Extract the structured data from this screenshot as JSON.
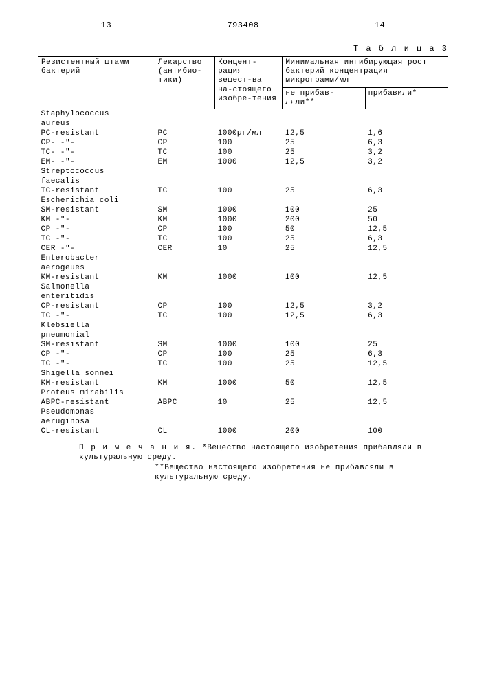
{
  "page": {
    "left_num": "13",
    "doc_num": "793408",
    "right_num": "14"
  },
  "caption": "Т а б л и ц а   3",
  "headers": {
    "col1": "Резистентный штамм бактерий",
    "col2": "Лекарство (антибио-тики)",
    "col3": "Концент-рация вещест-ва на-стоящего изобре-тения",
    "col45_top": "Минимальная ингибирующая рост бактерий концентрация микрограмм/мл",
    "col4": "не прибав-ляли**",
    "col5": "прибавили*"
  },
  "groups": [
    {
      "label_lines": [
        "Staphylococcus",
        "aureus"
      ],
      "rows": [
        {
          "c1": "PC-resistant",
          "c2": "PC",
          "c3": "1000µг/мл",
          "c4": "12,5",
          "c5": "1,6"
        },
        {
          "c1": "CP-  -\"-",
          "c2": "CP",
          "c3": "100",
          "c4": "25",
          "c5": "6,3"
        },
        {
          "c1": "TC-  -\"-",
          "c2": "TC",
          "c3": "100",
          "c4": "25",
          "c5": "3,2"
        },
        {
          "c1": "EM-  -\"-",
          "c2": "EM",
          "c3": "1000",
          "c4": "12,5",
          "c5": "3,2"
        }
      ]
    },
    {
      "label_lines": [
        "Streptococcus",
        "faecalis"
      ],
      "rows": [
        {
          "c1": "TC-resistant",
          "c2": "TC",
          "c3": "100",
          "c4": "25",
          "c5": "6,3"
        }
      ]
    },
    {
      "label_lines": [
        "Escherichia coli"
      ],
      "rows": [
        {
          "c1": "SM-resistant",
          "c2": "SM",
          "c3": "1000",
          "c4": "100",
          "c5": "25"
        },
        {
          "c1": "KM   -\"-",
          "c2": "KM",
          "c3": "1000",
          "c4": "200",
          "c5": "50"
        },
        {
          "c1": "CP   -\"-",
          "c2": "CP",
          "c3": "100",
          "c4": "50",
          "c5": "12,5"
        },
        {
          "c1": "TC   -\"-",
          "c2": "TC",
          "c3": "100",
          "c4": "25",
          "c5": "6,3"
        },
        {
          "c1": "CER  -\"-",
          "c2": "CER",
          "c3": "10",
          "c4": "25",
          "c5": "12,5"
        }
      ]
    },
    {
      "label_lines": [
        "Enterobacter",
        "aerogeues"
      ],
      "rows": [
        {
          "c1": "KM-resistant",
          "c2": "KM",
          "c3": "1000",
          "c4": "100",
          "c5": "12,5"
        }
      ]
    },
    {
      "label_lines": [
        "Salmonella",
        "enteritidis"
      ],
      "rows": [
        {
          "c1": "CP-resistant",
          "c2": "CP",
          "c3": "100",
          "c4": "12,5",
          "c5": "3,2"
        },
        {
          "c1": "TC   -\"-",
          "c2": "TC",
          "c3": "100",
          "c4": "12,5",
          "c5": "6,3"
        }
      ]
    },
    {
      "label_lines": [
        "Klebsiella",
        "pneumonial"
      ],
      "rows": [
        {
          "c1": "SM-resistant",
          "c2": "SM",
          "c3": "1000",
          "c4": "100",
          "c5": "25"
        },
        {
          "c1": "CP   -\"-",
          "c2": "CP",
          "c3": "100",
          "c4": "25",
          "c5": "6,3"
        },
        {
          "c1": "TC   -\"-",
          "c2": "TC",
          "c3": "100",
          "c4": "25",
          "c5": "12,5"
        }
      ]
    },
    {
      "label_lines": [
        "Shigella sonnei"
      ],
      "rows": [
        {
          "c1": "KM-resistant",
          "c2": "KM",
          "c3": "1000",
          "c4": "50",
          "c5": "12,5"
        }
      ]
    },
    {
      "label_lines": [
        "Proteus mirabilis"
      ],
      "rows": [
        {
          "c1": "ABPC-resistant",
          "c2": "ABPC",
          "c3": "10",
          "c4": "25",
          "c5": "12,5"
        }
      ]
    },
    {
      "label_lines": [
        "Pseudomonas",
        "aeruginosa"
      ],
      "rows": [
        {
          "c1": "CL-resistant",
          "c2": "CL",
          "c3": "1000",
          "c4": "200",
          "c5": "100"
        }
      ]
    }
  ],
  "footnote": {
    "label": "П р и м е ч а н и я.",
    "star1": "*Вещество настоящего изобретения прибавляли в культуральную среду.",
    "star2": "**Вещество настоящего изобретения не прибавляли в культуральную среду."
  }
}
